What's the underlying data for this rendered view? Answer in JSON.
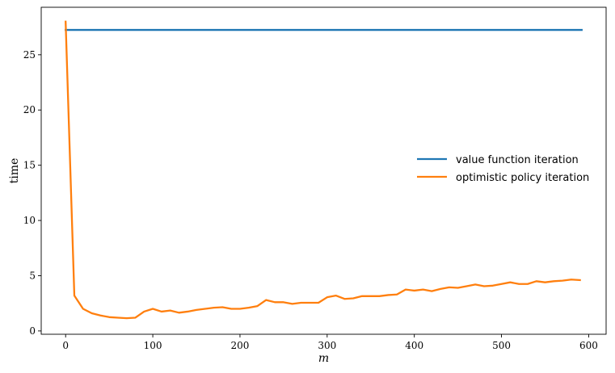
{
  "chart_data": {
    "type": "line",
    "title": "",
    "xlabel": "m",
    "ylabel": "time",
    "xlim": [
      -28,
      620
    ],
    "ylim": [
      -0.3,
      29.3
    ],
    "xticks": [
      0,
      100,
      200,
      300,
      400,
      500,
      600
    ],
    "yticks": [
      0,
      5,
      10,
      15,
      20,
      25
    ],
    "grid": false,
    "legend_position": "center-right",
    "series": [
      {
        "name": "value function iteration",
        "color": "#1f77b4",
        "x": [
          0,
          592
        ],
        "y": [
          27.25,
          27.25
        ]
      },
      {
        "name": "optimistic policy iteration",
        "color": "#ff7f0e",
        "x": [
          0,
          10,
          20,
          30,
          40,
          50,
          60,
          70,
          80,
          90,
          100,
          110,
          120,
          130,
          140,
          150,
          160,
          170,
          180,
          190,
          200,
          210,
          220,
          230,
          240,
          250,
          260,
          270,
          280,
          290,
          300,
          310,
          320,
          330,
          340,
          350,
          360,
          370,
          380,
          390,
          400,
          410,
          420,
          430,
          440,
          450,
          460,
          470,
          480,
          490,
          500,
          510,
          520,
          530,
          540,
          550,
          560,
          570,
          580,
          590
        ],
        "y": [
          28.0,
          3.2,
          2.0,
          1.6,
          1.4,
          1.25,
          1.2,
          1.15,
          1.2,
          1.75,
          2.0,
          1.75,
          1.85,
          1.65,
          1.75,
          1.9,
          2.0,
          2.1,
          2.15,
          2.0,
          2.0,
          2.1,
          2.25,
          2.8,
          2.6,
          2.6,
          2.45,
          2.55,
          2.55,
          2.55,
          3.05,
          3.2,
          2.9,
          2.95,
          3.15,
          3.15,
          3.15,
          3.25,
          3.3,
          3.75,
          3.65,
          3.75,
          3.6,
          3.8,
          3.95,
          3.9,
          4.05,
          4.2,
          4.05,
          4.1,
          4.25,
          4.4,
          4.25,
          4.25,
          4.5,
          4.4,
          4.5,
          4.55,
          4.65,
          4.6
        ]
      }
    ]
  }
}
